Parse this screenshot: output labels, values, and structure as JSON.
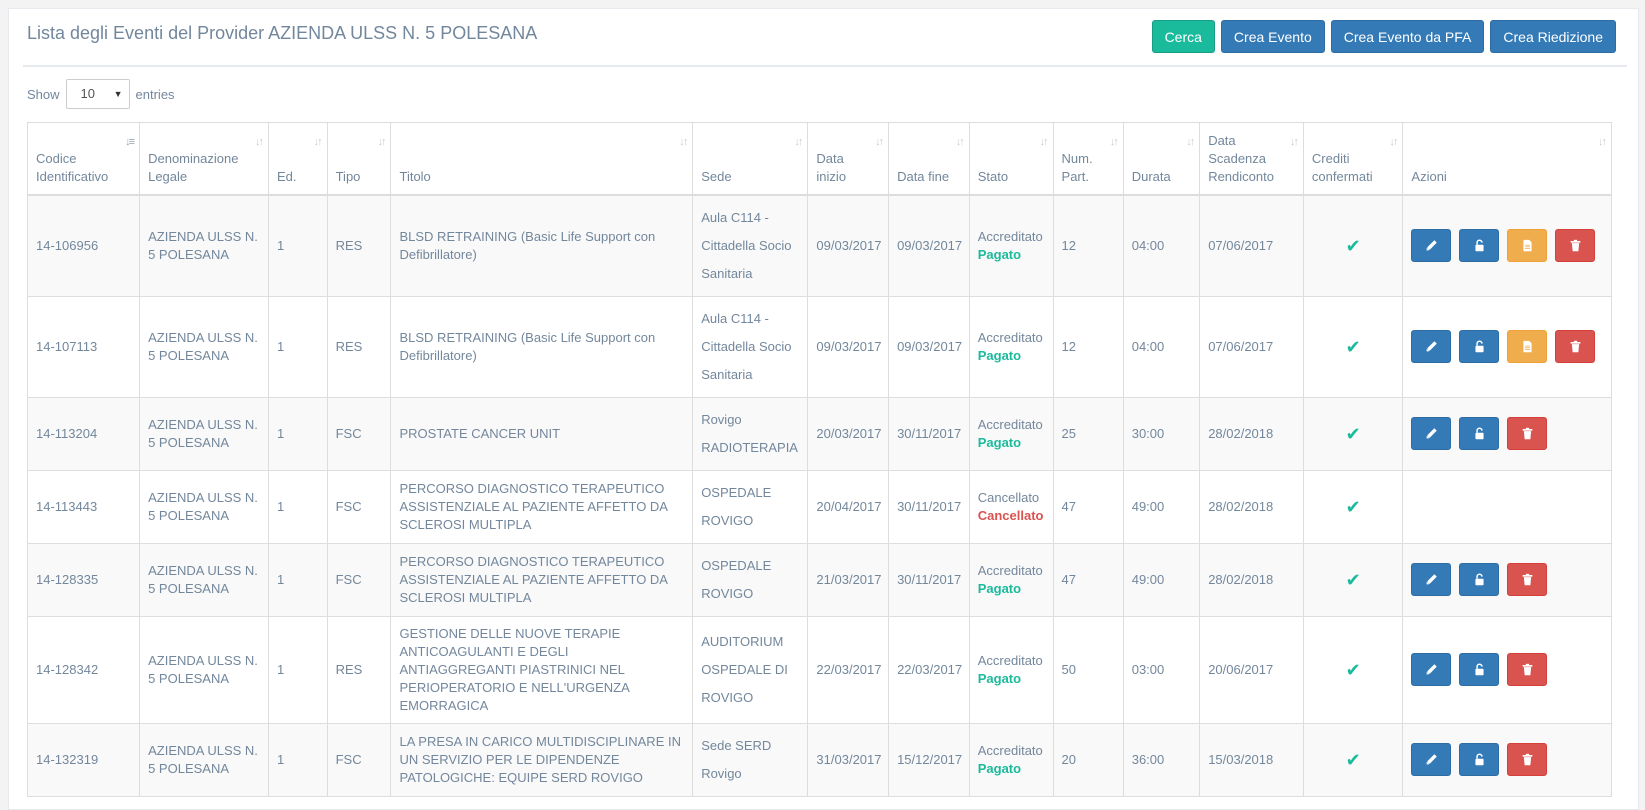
{
  "header": {
    "title": "Lista degli Eventi del Provider AZIENDA ULSS N. 5 POLESANA",
    "buttons": {
      "cerca": "Cerca",
      "crea_evento": "Crea Evento",
      "crea_evento_pfa": "Crea Evento da PFA",
      "crea_riedizione": "Crea Riedizione"
    }
  },
  "length_menu": {
    "show": "Show",
    "value": "10",
    "entries": "entries"
  },
  "table": {
    "columns": [
      "Codice Identificativo",
      "Denominazione Legale",
      "Ed.",
      "Tipo",
      "Titolo",
      "Sede",
      "Data inizio",
      "Data fine",
      "Stato",
      "Num. Part.",
      "Durata",
      "Data Scadenza Rendiconto",
      "Crediti confermati",
      "Azioni"
    ],
    "rows": [
      {
        "codice": "14-106956",
        "denominazione": "AZIENDA ULSS N. 5 POLESANA",
        "ed": "1",
        "tipo": "RES",
        "titolo": "BLSD RETRAINING (Basic Life Support con Defibrillatore)",
        "sede": "Aula C114 - Cittadella Socio Sanitaria",
        "data_inizio": "09/03/2017",
        "data_fine": "09/03/2017",
        "stato": "Accreditato",
        "pagamento": "Pagato",
        "num_part": "12",
        "durata": "04:00",
        "scadenza": "07/06/2017"
      },
      {
        "codice": "14-107113",
        "denominazione": "AZIENDA ULSS N. 5 POLESANA",
        "ed": "1",
        "tipo": "RES",
        "titolo": "BLSD RETRAINING (Basic Life Support con Defibrillatore)",
        "sede": "Aula C114 - Cittadella Socio Sanitaria",
        "data_inizio": "09/03/2017",
        "data_fine": "09/03/2017",
        "stato": "Accreditato",
        "pagamento": "Pagato",
        "num_part": "12",
        "durata": "04:00",
        "scadenza": "07/06/2017"
      },
      {
        "codice": "14-113204",
        "denominazione": "AZIENDA ULSS N. 5 POLESANA",
        "ed": "1",
        "tipo": "FSC",
        "titolo": "PROSTATE CANCER UNIT",
        "sede": "Rovigo RADIOTERAPIA",
        "data_inizio": "20/03/2017",
        "data_fine": "30/11/2017",
        "stato": "Accreditato",
        "pagamento": "Pagato",
        "num_part": "25",
        "durata": "30:00",
        "scadenza": "28/02/2018"
      },
      {
        "codice": "14-113443",
        "denominazione": "AZIENDA ULSS N. 5 POLESANA",
        "ed": "1",
        "tipo": "FSC",
        "titolo": "PERCORSO DIAGNOSTICO TERAPEUTICO ASSISTENZIALE AL PAZIENTE AFFETTO DA SCLEROSI MULTIPLA",
        "sede": "OSPEDALE ROVIGO",
        "data_inizio": "20/04/2017",
        "data_fine": "30/11/2017",
        "stato": "Cancellato",
        "pagamento": "Cancellato",
        "num_part": "47",
        "durata": "49:00",
        "scadenza": "28/02/2018"
      },
      {
        "codice": "14-128335",
        "denominazione": "AZIENDA ULSS N. 5 POLESANA",
        "ed": "1",
        "tipo": "FSC",
        "titolo": "PERCORSO DIAGNOSTICO TERAPEUTICO ASSISTENZIALE AL PAZIENTE AFFETTO DA SCLEROSI MULTIPLA",
        "sede": "OSPEDALE ROVIGO",
        "data_inizio": "21/03/2017",
        "data_fine": "30/11/2017",
        "stato": "Accreditato",
        "pagamento": "Pagato",
        "num_part": "47",
        "durata": "49:00",
        "scadenza": "28/02/2018"
      },
      {
        "codice": "14-128342",
        "denominazione": "AZIENDA ULSS N. 5 POLESANA",
        "ed": "1",
        "tipo": "RES",
        "titolo": "GESTIONE DELLE NUOVE TERAPIE ANTICOAGULANTI E DEGLI ANTIAGGREGANTI PIASTRINICI NEL PERIOPERATORIO E NELL'URGENZA EMORRAGICA",
        "sede": "AUDITORIUM OSPEDALE DI ROVIGO",
        "data_inizio": "22/03/2017",
        "data_fine": "22/03/2017",
        "stato": "Accreditato",
        "pagamento": "Pagato",
        "num_part": "50",
        "durata": "03:00",
        "scadenza": "20/06/2017"
      },
      {
        "codice": "14-132319",
        "denominazione": "AZIENDA ULSS N. 5 POLESANA",
        "ed": "1",
        "tipo": "FSC",
        "titolo": "LA PRESA IN CARICO MULTIDISCIPLINARE IN UN SERVIZIO PER LE DIPENDENZE PATOLOGICHE: EQUIPE SERD ROVIGO",
        "sede": "Sede SERD Rovigo",
        "data_inizio": "31/03/2017",
        "data_fine": "15/12/2017",
        "stato": "Accreditato",
        "pagamento": "Pagato",
        "num_part": "20",
        "durata": "36:00",
        "scadenza": "15/03/2018"
      }
    ]
  },
  "colors": {
    "success": "#1abb9c",
    "primary": "#337ab7",
    "warning": "#f0ad4e",
    "danger": "#d9534f",
    "text": "#73879c"
  },
  "icons": {
    "sort": "sort-icon",
    "sort_active": "sort-alpha-asc-icon",
    "check": "check-icon",
    "edit": "pencil-icon",
    "unlock": "unlock-icon",
    "document": "file-icon",
    "delete": "trash-icon"
  }
}
